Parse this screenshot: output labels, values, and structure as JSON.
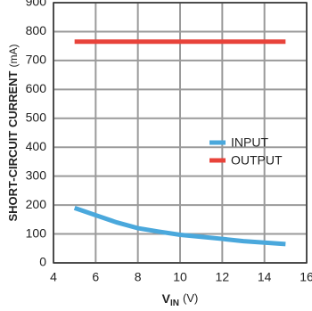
{
  "chart_data": {
    "type": "line",
    "ylabel": {
      "main": "SHORT-CIRCUIT CURRENT",
      "unit": "(mA)"
    },
    "xlabel": {
      "main": "V",
      "sub": "IN",
      "unit": "(V)"
    },
    "xlim": [
      4,
      16
    ],
    "xticks": [
      4,
      6,
      8,
      10,
      12,
      14,
      16
    ],
    "ylim": [
      0,
      900
    ],
    "yticks": [
      0,
      100,
      200,
      300,
      400,
      500,
      600,
      700,
      800,
      900
    ],
    "grid": true,
    "series": [
      {
        "name": "INPUT",
        "color": "#4aa8dc",
        "x": [
          5,
          6,
          7,
          8,
          9,
          10,
          11,
          12,
          13,
          14,
          15
        ],
        "values": [
          190,
          165,
          140,
          120,
          108,
          97,
          90,
          83,
          75,
          70,
          65
        ]
      },
      {
        "name": "OUTPUT",
        "color": "#e8433a",
        "x": [
          5,
          15
        ],
        "values": [
          765,
          765
        ]
      }
    ]
  }
}
